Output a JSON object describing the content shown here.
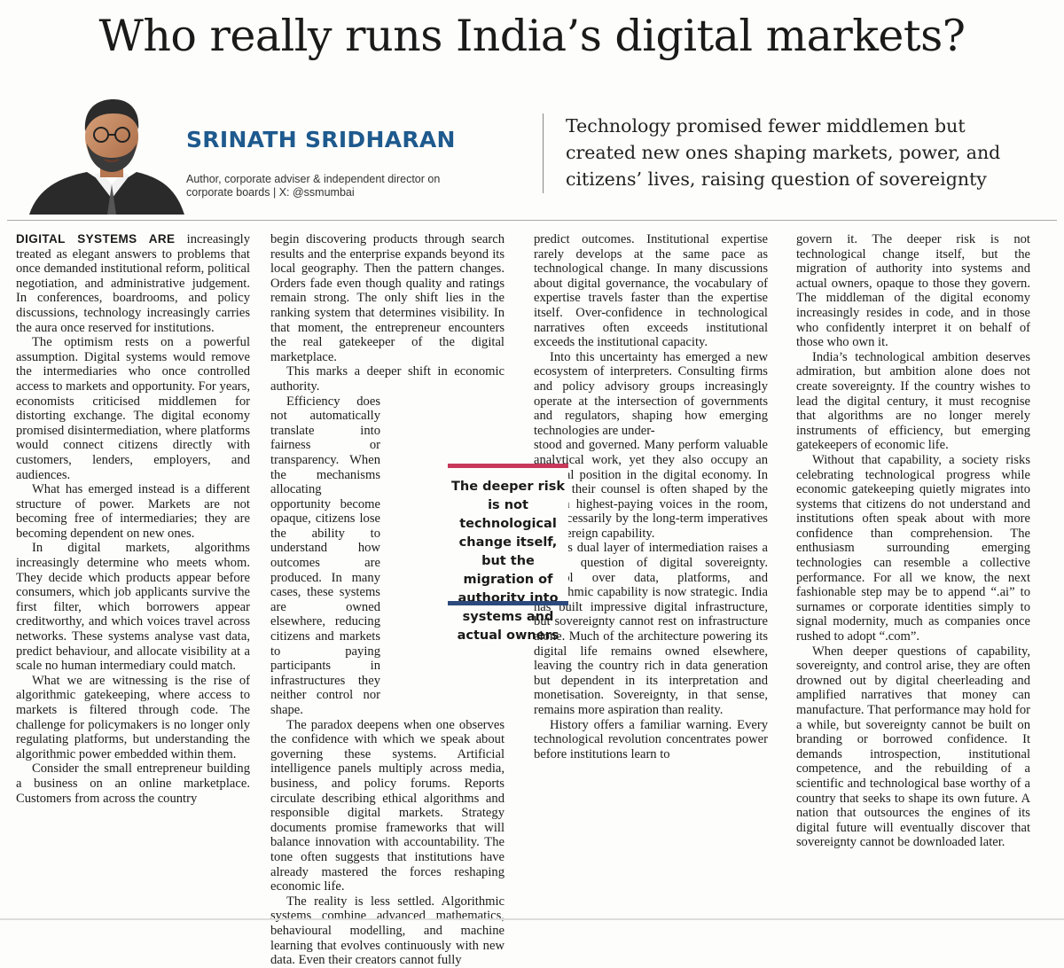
{
  "article": {
    "headline": "Who really runs India’s digital markets?",
    "author": {
      "name": "SRINATH SRIDHARAN",
      "bio": "Author, corporate adviser & independent director on corporate boards | X: @ssmumbai"
    },
    "standfirst": "Technology promised fewer middlemen but created new ones shaping markets, power, and citizens’ lives, raising question of sovereignty",
    "pull_quote": "The deeper risk is not technological change itself, but the migration of authority into systems and actual owners",
    "lead_caps": "DIGITAL SYSTEMS ARE",
    "col1": [
      " increasingly treated as elegant answers to problems that once demanded institutional reform, political negotiation, and administrative judgement. In conferences, boardrooms, and policy discussions, technology increasingly carries the aura once reserved for institutions.",
      "The optimism rests on a powerful assumption. Digital systems would remove the intermediaries who once controlled access to markets and opportunity. For years, economists criticised middlemen for distorting exchange. The digital economy promised disintermediation, where platforms would connect citizens directly with customers, lenders, employers, and audiences.",
      "What has emerged instead is a different structure of power. Markets are not becoming free of intermediaries; they are becoming dependent on new ones.",
      "In digital markets, algorithms increasingly determine who meets whom. They decide which products appear before consumers, which job applicants survive the first filter, which borrowers appear creditworthy, and which voices travel across networks. These systems analyse vast data, predict behaviour, and allocate visibility at a scale no human intermediary could match.",
      "What we are witnessing is the rise of algorithmic gatekeeping, where access to markets is filtered through code. The challenge for policymakers is no longer only regulating platforms, but understanding the algorithmic power embedded within them.",
      "Consider the small entrepreneur building a business on an online marketplace. Customers from across the country"
    ],
    "col2": [
      "begin discovering products through search results and the enterprise expands beyond its local geography. Then the pattern changes. Orders fade even though quality and ratings remain strong. The only shift lies in the ranking system that determines visibility. In that moment, the entrepreneur encounters the real gatekeeper of the digital marketplace.",
      "This marks a deeper shift in economic authority.",
      "Efficiency does not automatically translate into fairness or transparency. When the mechanisms allocating opportunity become opaque, citizens lose the ability to understand how outcomes are produced. In many cases, these systems are owned elsewhere, reducing citizens and markets to paying participants in infrastructures they neither control nor shape.",
      "The paradox deepens when one observes the confidence with which we speak about governing these systems. Artificial intelligence panels multiply across media, business, and policy forums. Reports circulate describing ethical algorithms and responsible digital markets. Strategy documents promise frameworks that will balance innovation with accountability. The tone often suggests that institutions have already mastered the forces reshaping economic life.",
      "The reality is less settled. Algorithmic systems combine advanced mathematics, behavioural modelling, and machine learning that evolves continuously with new data. Even their creators cannot fully"
    ],
    "col3": [
      "predict outcomes. Institutional expertise rarely develops at the same pace as technological change. In many discussions about digital governance, the vocabulary of expertise travels faster than the expertise itself. Over-confidence in technological narratives often exceeds institutional exceeds the institutional capacity.",
      "Into this uncertainty has emerged a new ecosystem of interpreters. Consulting firms and policy advisory groups increasingly operate at the intersection of governments and regulators, shaping how emerging technologies are under-",
      "stood and governed. Many perform valuable analytical work, yet they also occupy an unusual position in the digital economy. In effect, their counsel is often shaped by the unseen highest-paying voices in the room, not necessarily by the long-term imperatives of sovereign capability.",
      "This dual layer of intermediation raises a deeper question of digital sovereignty. Control over data, platforms, and algorithmic capability is now strategic. India has built impressive digital infrastructure, but sovereignty cannot rest on infrastructure alone. Much of the architecture powering its digital life remains owned elsewhere, leaving the country rich in data generation but dependent in its interpretation and monetisation. Sovereignty, in that sense, remains more aspiration than reality.",
      "History offers a familiar warning. Every technological revolution concentrates power before institutions learn to"
    ],
    "col4": [
      "govern it. The deeper risk is not technological change itself, but the migration of authority into systems and actual owners, opaque to those they govern. The middleman of the digital economy increasingly resides in code, and in those who confidently interpret it on behalf of those who own it.",
      "India’s technological ambition deserves admiration, but ambition alone does not create sovereignty. If the country wishes to lead the digital century, it must recognise that algorithms are no longer merely instruments of efficiency, but emerging gatekeepers of economic life.",
      "Without that capability, a society risks celebrating technological progress while economic gatekeeping quietly migrates into systems that citizens do not understand and institutions often speak about with more confidence than comprehension. The enthusiasm surrounding emerging technologies can resemble a collective performance. For all we know, the next fashionable step may be to append “.ai” to surnames or corporate identities simply to signal modernity, much as companies once rushed to adopt “.com”.",
      "When deeper questions of capability, sovereignty, and control arise, they are often drowned out by digital cheerleading and amplified narratives that money can manufacture. That performance may hold for a while, but sovereignty cannot be built on branding or borrowed confidence. It demands introspection, institutional competence, and the rebuilding of a scientific and technological base worthy of a country that seeks to shape its own future. A nation that outsources the engines of its digital future will eventually discover that sovereignty cannot be downloaded later."
    ]
  },
  "colors": {
    "author_name": "#1e5a8e",
    "pullquote_top_bar": "#c7385a",
    "pullquote_bottom_bar": "#2c4a7e"
  },
  "icons": {
    "portrait": "author-portrait-illustration"
  }
}
